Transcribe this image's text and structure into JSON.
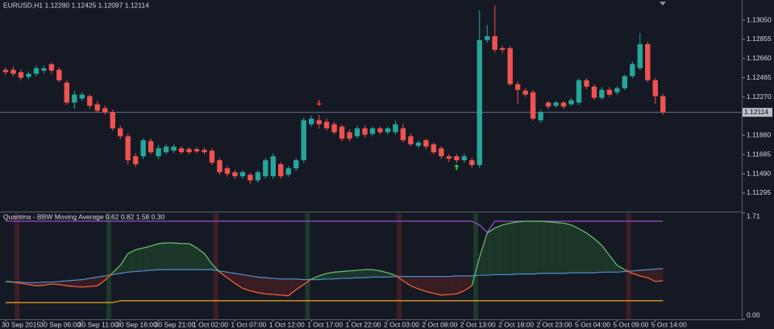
{
  "chart_data": [
    {
      "type": "candlestick",
      "title": "EURUSD,H1  1.12280 1.12425 1.12097 1.12114",
      "categories": [
        "30 Sep 2015",
        null,
        null,
        null,
        null,
        "30 Sep 06:00",
        null,
        null,
        null,
        null,
        "30 Sep 11:00",
        null,
        null,
        null,
        null,
        "30 Sep 16:00",
        null,
        null,
        null,
        null,
        "30 Sep 21:00",
        null,
        null,
        null,
        null,
        "1 Oct 02:00",
        null,
        null,
        null,
        null,
        "1 Oct 07:00",
        null,
        null,
        null,
        null,
        "1 Oct 12:00",
        null,
        null,
        null,
        null,
        "1 Oct 17:00",
        null,
        null,
        null,
        null,
        "1 Oct 22:00",
        null,
        null,
        null,
        null,
        "2 Oct 03:00",
        null,
        null,
        null,
        null,
        "2 Oct 08:00",
        null,
        null,
        null,
        null,
        "2 Oct 13:00",
        null,
        null,
        null,
        null,
        "2 Oct 18:00",
        null,
        null,
        null,
        null,
        "2 Oct 23:00",
        null,
        null,
        null,
        null,
        "5 Oct 04:00",
        null,
        null,
        null,
        null,
        "5 Oct 09:00",
        null,
        null,
        null,
        null,
        "5 Oct 14:00",
        null
      ],
      "open": [
        1.12546,
        1.12546,
        1.12522,
        1.12473,
        1.12505,
        1.12538,
        1.12603,
        1.12546,
        1.12416,
        1.12213,
        1.12253,
        1.12278,
        1.12196,
        1.12156,
        1.12115,
        1.11952,
        1.11871,
        1.11668,
        1.11668,
        1.11822,
        1.11668,
        1.11709,
        1.11725,
        1.11749,
        1.11741,
        1.11741,
        1.11733,
        1.11725,
        1.11628,
        1.11546,
        1.11506,
        1.11465,
        1.11481,
        1.11424,
        1.11465,
        1.11465,
        1.11587,
        1.11481,
        1.11546,
        1.11628,
        1.11993,
        1.12034,
        1.12017,
        1.11993,
        1.11969,
        1.11912,
        1.11871,
        1.11952,
        1.11895,
        1.11952,
        1.11912,
        1.11912,
        1.11952,
        1.11871,
        1.11774,
        1.11831,
        1.1179,
        1.11749,
        1.11668,
        1.11668,
        1.11628,
        1.11628,
        1.11579,
        1.12847,
        1.12887,
        1.12765,
        1.12765,
        1.124,
        1.12335,
        1.12318,
        1.12034,
        1.12213,
        1.1218,
        1.12213,
        1.12196,
        1.12213,
        1.1244,
        1.12375,
        1.12261,
        1.12343,
        1.12318,
        1.12359,
        1.12481,
        1.12562,
        1.12806,
        1.1244,
        1.12278
      ],
      "high": [
        1.12571,
        1.1258,
        1.1255,
        1.1253,
        1.1259,
        1.1259,
        1.1262,
        1.1257,
        1.1244,
        1.1233,
        1.1232,
        1.123,
        1.1223,
        1.1218,
        1.1214,
        1.1198,
        1.119,
        1.117,
        1.1185,
        1.1185,
        1.1178,
        1.1179,
        1.1179,
        1.1177,
        1.1176,
        1.1176,
        1.1176,
        1.1175,
        1.1165,
        1.1157,
        1.1153,
        1.1153,
        1.115,
        1.1153,
        1.1165,
        1.117,
        1.1161,
        1.1157,
        1.1165,
        1.1206,
        1.1208,
        1.1209,
        1.1205,
        1.1202,
        1.1199,
        1.1194,
        1.1198,
        1.1198,
        1.1197,
        1.1197,
        1.1197,
        1.1203,
        1.12,
        1.119,
        1.1183,
        1.1185,
        1.1181,
        1.1177,
        1.1169,
        1.1169,
        1.117,
        1.1165,
        1.1315,
        1.13,
        1.132,
        1.1279,
        1.1279,
        1.1243,
        1.1236,
        1.1234,
        1.1214,
        1.1223,
        1.1223,
        1.1223,
        1.1226,
        1.1246,
        1.1246,
        1.124,
        1.1237,
        1.1237,
        1.1238,
        1.125,
        1.1263,
        1.1292,
        1.1283,
        1.1246,
        1.123
      ],
      "low": [
        1.12497,
        1.1248,
        1.1244,
        1.1245,
        1.1248,
        1.1251,
        1.12505,
        1.1242,
        1.1219,
        1.1215,
        1.1223,
        1.1215,
        1.1211,
        1.1209,
        1.1193,
        1.1184,
        1.1158,
        1.1156,
        1.1164,
        1.1169,
        1.1164,
        1.1169,
        1.117,
        1.1169,
        1.1169,
        1.117,
        1.1169,
        1.1158,
        1.1148,
        1.1146,
        1.1144,
        1.1144,
        1.1139,
        1.114,
        1.1144,
        1.1144,
        1.1144,
        1.1146,
        1.1152,
        1.116,
        1.1197,
        1.1195,
        1.1193,
        1.1189,
        1.1182,
        1.1182,
        1.1185,
        1.1186,
        1.1187,
        1.1189,
        1.1189,
        1.1189,
        1.1181,
        1.1177,
        1.1175,
        1.1174,
        1.1169,
        1.1164,
        1.1161,
        1.116,
        1.116,
        1.1155,
        1.1155,
        1.1282,
        1.1272,
        1.1272,
        1.1238,
        1.122,
        1.1227,
        1.1203,
        1.1201,
        1.1215,
        1.1216,
        1.1215,
        1.1218,
        1.1219,
        1.1235,
        1.1224,
        1.1224,
        1.1227,
        1.1229,
        1.1234,
        1.1246,
        1.1254,
        1.1242,
        1.122,
        1.1209
      ],
      "close": [
        1.12522,
        1.12505,
        1.12465,
        1.12505,
        1.12562,
        1.12562,
        1.12538,
        1.1244,
        1.12213,
        1.12294,
        1.12294,
        1.1218,
        1.12131,
        1.12115,
        1.11952,
        1.11871,
        1.11628,
        1.11587,
        1.11831,
        1.11709,
        1.11749,
        1.11766,
        1.11766,
        1.11709,
        1.11709,
        1.11717,
        1.11709,
        1.11603,
        1.11506,
        1.11489,
        1.11465,
        1.11506,
        1.11424,
        1.11506,
        1.11628,
        1.11668,
        1.11465,
        1.11546,
        1.11628,
        1.12034,
        1.1205,
        1.11993,
        1.11952,
        1.11912,
        1.11847,
        1.11847,
        1.11952,
        1.11887,
        1.11952,
        1.11912,
        1.11952,
        1.11993,
        1.11831,
        1.1179,
        1.11806,
        1.11766,
        1.11709,
        1.11668,
        1.11644,
        1.11628,
        1.11668,
        1.11579,
        1.12847,
        1.12887,
        1.12749,
        1.12749,
        1.124,
        1.12343,
        1.12294,
        1.1205,
        1.12115,
        1.12172,
        1.12213,
        1.12172,
        1.12237,
        1.1244,
        1.12375,
        1.12261,
        1.12343,
        1.12294,
        1.12359,
        1.12481,
        1.12603,
        1.12806,
        1.1244,
        1.12278,
        1.12114
      ],
      "color_up": "#26a69a",
      "color_down": "#ef5350",
      "ylim": [
        1.11115,
        1.13238
      ],
      "yticks": [
        {
          "value": 1.1305,
          "label": "1.13050"
        },
        1.12855,
        {
          "value": 1.1266,
          "label": "1.12660"
        },
        1.12465,
        {
          "value": 1.1227,
          "label": "1.12270"
        },
        {
          "value": 1.1188,
          "label": "1.11880"
        },
        1.11685,
        {
          "value": 1.1149,
          "label": "1.11490"
        },
        1.11295
      ],
      "current_price": 1.12114,
      "arrows": [
        {
          "index": 41,
          "price": 1.1218,
          "direction": "down",
          "color": "#e53935"
        },
        {
          "index": 59,
          "price": 1.11587,
          "direction": "up",
          "color": "#2ecc40"
        }
      ]
    },
    {
      "type": "line",
      "title": "Quantina - BBW Moving Average 0.62 0.82 1.58 0.30",
      "series": [
        {
          "color": "#66bb6a",
          "color_below": "#f0603c",
          "fill": "#1d3a2b",
          "fill_below": "#3d1e24",
          "values": [
            0.61,
            0.6,
            0.58,
            0.56,
            0.54,
            0.55,
            0.57,
            0.56,
            0.54,
            0.53,
            0.52,
            0.53,
            0.54,
            0.63,
            0.75,
            0.87,
            1.06,
            1.12,
            1.15,
            1.18,
            1.22,
            1.23,
            1.23,
            1.22,
            1.22,
            1.15,
            1.06,
            0.89,
            0.76,
            0.67,
            0.58,
            0.5,
            0.46,
            0.43,
            0.41,
            0.4,
            0.39,
            0.38,
            0.48,
            0.56,
            0.65,
            0.7,
            0.74,
            0.76,
            0.77,
            0.78,
            0.79,
            0.8,
            0.8,
            0.78,
            0.75,
            0.71,
            0.62,
            0.54,
            0.49,
            0.45,
            0.42,
            0.39,
            0.4,
            0.41,
            0.46,
            0.54,
            1.0,
            1.39,
            1.47,
            1.52,
            1.55,
            1.57,
            1.58,
            1.58,
            1.58,
            1.57,
            1.56,
            1.55,
            1.52,
            1.46,
            1.39,
            1.3,
            1.19,
            1.03,
            0.87,
            0.8,
            0.74,
            0.7,
            0.67,
            0.61,
            0.62
          ]
        },
        {
          "color": "#4d8fd1",
          "values": [
            0.61,
            0.6,
            0.6,
            0.59,
            0.59,
            0.6,
            0.6,
            0.61,
            0.62,
            0.63,
            0.64,
            0.66,
            0.68,
            0.7,
            0.72,
            0.74,
            0.76,
            0.77,
            0.78,
            0.79,
            0.8,
            0.8,
            0.8,
            0.8,
            0.8,
            0.8,
            0.8,
            0.8,
            0.78,
            0.76,
            0.74,
            0.72,
            0.7,
            0.68,
            0.67,
            0.66,
            0.65,
            0.65,
            0.65,
            0.64,
            0.64,
            0.64,
            0.65,
            0.65,
            0.66,
            0.66,
            0.67,
            0.67,
            0.68,
            0.68,
            0.68,
            0.69,
            0.69,
            0.69,
            0.69,
            0.69,
            0.69,
            0.69,
            0.69,
            0.7,
            0.7,
            0.7,
            0.71,
            0.71,
            0.72,
            0.72,
            0.72,
            0.73,
            0.73,
            0.73,
            0.74,
            0.74,
            0.74,
            0.74,
            0.75,
            0.75,
            0.75,
            0.75,
            0.76,
            0.76,
            0.76,
            0.77,
            0.78,
            0.79,
            0.8,
            0.81,
            0.82
          ]
        },
        {
          "color": "#9c4dcc",
          "values": [
            1.58,
            1.58,
            1.58,
            1.58,
            1.58,
            1.58,
            1.58,
            1.58,
            1.58,
            1.58,
            1.58,
            1.58,
            1.58,
            1.58,
            1.58,
            1.58,
            1.58,
            1.58,
            1.58,
            1.58,
            1.58,
            1.58,
            1.58,
            1.58,
            1.58,
            1.58,
            1.58,
            1.58,
            1.58,
            1.58,
            1.58,
            1.58,
            1.58,
            1.58,
            1.58,
            1.58,
            1.58,
            1.58,
            1.58,
            1.58,
            1.58,
            1.58,
            1.58,
            1.58,
            1.58,
            1.58,
            1.58,
            1.58,
            1.58,
            1.58,
            1.58,
            1.58,
            1.58,
            1.58,
            1.58,
            1.58,
            1.58,
            1.58,
            1.58,
            1.58,
            1.58,
            1.58,
            1.52,
            1.4,
            1.58,
            1.58,
            1.58,
            1.58,
            1.58,
            1.58,
            1.58,
            1.58,
            1.58,
            1.58,
            1.58,
            1.58,
            1.58,
            1.58,
            1.58,
            1.58,
            1.58,
            1.58,
            1.58,
            1.58,
            1.58,
            1.58,
            1.58
          ]
        },
        {
          "color": "#f5a623",
          "values": [
            0.27,
            0.27,
            0.27,
            0.27,
            0.27,
            0.27,
            0.27,
            0.27,
            0.27,
            0.27,
            0.27,
            0.27,
            0.27,
            0.27,
            0.27,
            0.3,
            0.3,
            0.3,
            0.3,
            0.3,
            0.3,
            0.3,
            0.3,
            0.3,
            0.3,
            0.3,
            0.3,
            0.3,
            0.3,
            0.3,
            0.3,
            0.3,
            0.3,
            0.3,
            0.3,
            0.3,
            0.3,
            0.3,
            0.3,
            0.3,
            0.3,
            0.3,
            0.3,
            0.3,
            0.3,
            0.3,
            0.3,
            0.3,
            0.3,
            0.3,
            0.3,
            0.3,
            0.3,
            0.3,
            0.3,
            0.3,
            0.3,
            0.3,
            0.3,
            0.3,
            0.3,
            0.3,
            0.3,
            0.3,
            0.3,
            0.3,
            0.3,
            0.3,
            0.3,
            0.3,
            0.3,
            0.3,
            0.3,
            0.3,
            0.3,
            0.3,
            0.3,
            0.3,
            0.3,
            0.3,
            0.3,
            0.3,
            0.3,
            0.3,
            0.3,
            0.3,
            0.3
          ]
        }
      ],
      "ylim": [
        0,
        1.71
      ],
      "yticks": [
        1.71,
        {
          "value": 0,
          "label": "0.00"
        }
      ]
    }
  ]
}
